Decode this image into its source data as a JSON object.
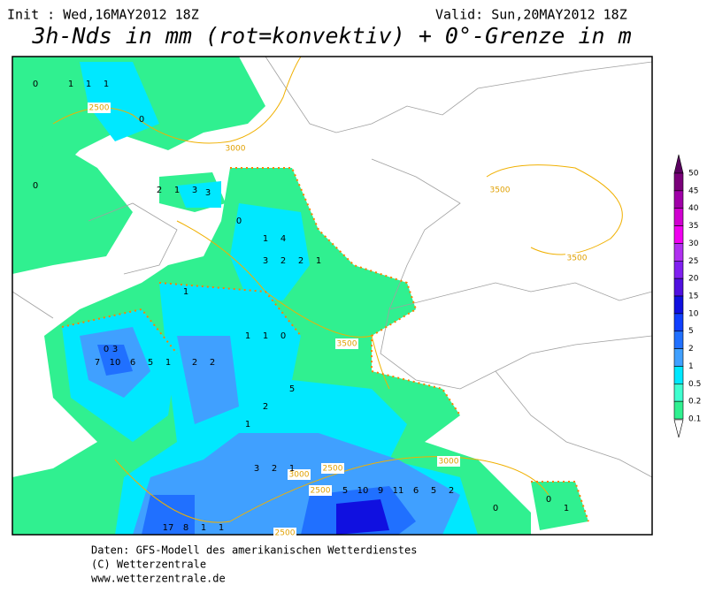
{
  "header": {
    "init": "Init : Wed,16MAY2012 18Z",
    "valid": "Valid: Sun,20MAY2012 18Z",
    "title": "3h-Nds in mm (rot=konvektiv) + 0°-Grenze in m"
  },
  "legend": {
    "labels": [
      50,
      45,
      40,
      35,
      30,
      25,
      20,
      15,
      10,
      5,
      2,
      1,
      0.5,
      0.2,
      0.1
    ],
    "colors": [
      "#5a0060",
      "#7a007a",
      "#a000a8",
      "#d000d0",
      "#f000f0",
      "#b030f0",
      "#8020f0",
      "#5010e0",
      "#1010e0",
      "#1040ff",
      "#2070ff",
      "#40a0ff",
      "#00e8ff",
      "#40ffd0",
      "#30f090"
    ]
  },
  "contour_labels": [
    "2500",
    "3000",
    "3500",
    "3500",
    "3500",
    "3000",
    "2500",
    "2500",
    "3000",
    "2500"
  ],
  "precip_labels": [
    0,
    1,
    1,
    1,
    0,
    0,
    2,
    1,
    3,
    3,
    0,
    1,
    4,
    3,
    2,
    2,
    1,
    1,
    0,
    3,
    7,
    10,
    6,
    5,
    1,
    2,
    2,
    1,
    1,
    0,
    5,
    3,
    2,
    1,
    5,
    10,
    9,
    11,
    6,
    5,
    2,
    17,
    8,
    1,
    1,
    0,
    0,
    1,
    2,
    1
  ],
  "footer": [
    "Daten: GFS-Modell des amerikanischen Wetterdienstes",
    "(C) Wetterzentrale",
    "www.wetterzentrale.de"
  ]
}
